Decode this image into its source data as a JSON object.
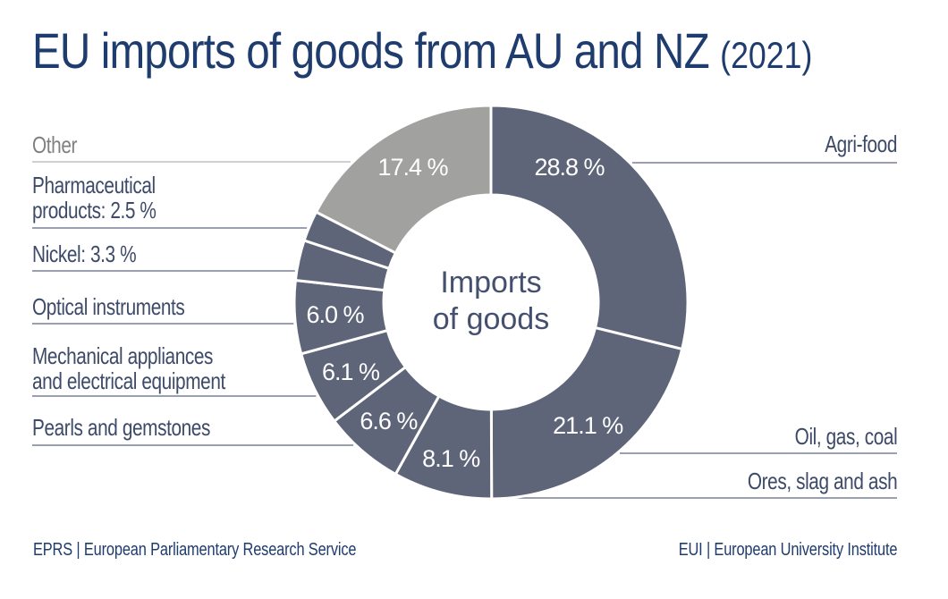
{
  "title": {
    "main": "EU imports of goods from AU and NZ",
    "year": "(2021)"
  },
  "donut_center": {
    "line1": "Imports",
    "line2": "of goods"
  },
  "chart_data": {
    "type": "pie",
    "subtype": "donut",
    "title": "Imports of goods",
    "unit": "percent",
    "start_angle_deg": 0,
    "direction": "clockwise",
    "segments": [
      {
        "label": "Agri-food",
        "value": 28.8,
        "display": "28.8 %",
        "color_key": "slate"
      },
      {
        "label": "Oil, gas, coal",
        "value": 21.1,
        "display": "21.1 %",
        "color_key": "slate"
      },
      {
        "label": "Ores, slag and ash",
        "value": 8.1,
        "display": "8.1 %",
        "color_key": "slate"
      },
      {
        "label": "Pearls and gemstones",
        "value": 6.6,
        "display": "6.6 %",
        "color_key": "slate"
      },
      {
        "label": "Mechanical appliances and electrical equipment",
        "value": 6.1,
        "display": "6.1 %",
        "color_key": "slate"
      },
      {
        "label": "Optical instruments",
        "value": 6.0,
        "display": "6.0 %",
        "color_key": "slate"
      },
      {
        "label": "Nickel",
        "value": 3.3,
        "display": "",
        "color_key": "slate"
      },
      {
        "label": "Pharmaceutical products",
        "value": 2.5,
        "display": "",
        "color_key": "slate"
      },
      {
        "label": "Other",
        "value": 17.4,
        "display": "17.4 %",
        "color_key": "gray"
      }
    ]
  },
  "callouts": {
    "left": [
      {
        "line1": "Other"
      },
      {
        "line1": "Pharmaceutical",
        "line2": "products: 2.5 %"
      },
      {
        "line1": "Nickel: 3.3 %"
      },
      {
        "line1": "Optical instruments"
      },
      {
        "line1": "Mechanical appliances",
        "line2": "and electrical equipment"
      },
      {
        "line1": "Pearls and gemstones"
      }
    ],
    "right": [
      {
        "line1": "Agri-food"
      },
      {
        "line1": "Oil, gas, coal"
      },
      {
        "line1": "Ores, slag and ash"
      }
    ]
  },
  "footer": {
    "left": "EPRS | European Parliamentary Research Service",
    "right": "EUI | European University Institute"
  },
  "colors": {
    "slate": "#5f6579",
    "gray": "#a1a19f",
    "title": "#1e3c6e",
    "label_text": "#3d4a68",
    "other_text": "#7f8081",
    "line": "#5d6880",
    "other_line": "#b3b4b6",
    "center_text": "#44506e",
    "pct_text": "#ffffff",
    "background": "#ffffff"
  }
}
